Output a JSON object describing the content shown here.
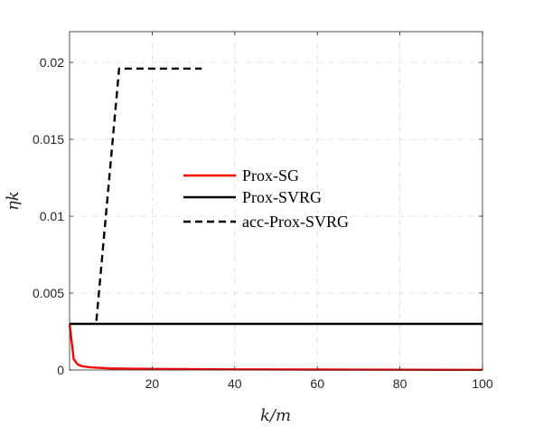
{
  "chart_data": {
    "type": "line",
    "title": "",
    "xlabel": "k/m",
    "ylabel": "ηk",
    "xlim": [
      0,
      100
    ],
    "ylim": [
      0,
      0.022
    ],
    "xticks": [
      20,
      40,
      60,
      80,
      100
    ],
    "yticks": [
      0,
      0.005,
      0.01,
      0.015,
      0.02
    ],
    "xtick_labels": [
      "20",
      "40",
      "60",
      "80",
      "100"
    ],
    "ytick_labels": [
      "0",
      "0.005",
      "0.01",
      "0.015",
      "0.02"
    ],
    "grid": true,
    "legend_position": "center",
    "series": [
      {
        "name": "Prox-SG",
        "color": "#ff0000",
        "line_style": "solid",
        "x": [
          0,
          1,
          2,
          3,
          5,
          10,
          20,
          40,
          60,
          80,
          100
        ],
        "y": [
          0.003,
          0.0007,
          0.00035,
          0.00025,
          0.00017,
          0.0001,
          7e-05,
          4e-05,
          3e-05,
          2e-05,
          1e-05
        ]
      },
      {
        "name": "Prox-SVRG",
        "color": "#000000",
        "line_style": "solid",
        "x": [
          0,
          100
        ],
        "y": [
          0.003,
          0.003
        ]
      },
      {
        "name": "acc-Prox-SVRG",
        "color": "#000000",
        "line_style": "dashed",
        "x": [
          6.5,
          12,
          32
        ],
        "y": [
          0.0032,
          0.0196,
          0.0196
        ]
      }
    ]
  }
}
